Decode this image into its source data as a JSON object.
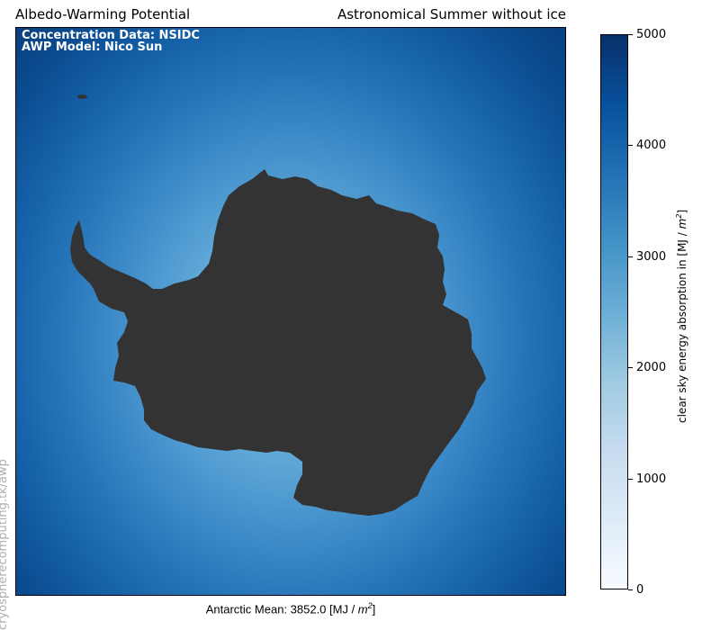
{
  "header": {
    "title_left": "Albedo-Warming Potential",
    "title_right": "Astronomical Summer without ice"
  },
  "map": {
    "info_line_1": "Concentration Data: NSIDC",
    "info_line_2": "AWP Model: Nico Sun",
    "land_color": "#333333",
    "ocean_colors": [
      "#6fb3dd",
      "#2675b9",
      "#08407f"
    ]
  },
  "footer": {
    "mean_label": "Antarctic Mean: 3852.0 [MJ / ",
    "unit_m": "m",
    "unit_exp": "2",
    "unit_close": "]"
  },
  "watermark": {
    "text": "cryospherecomputing.tk/awp"
  },
  "colorbar": {
    "label_prefix": "clear sky energy absorption in [MJ / ",
    "label_m": "m",
    "label_exp": "2",
    "label_close": "]",
    "ticks": [
      "5000",
      "4000",
      "3000",
      "2000",
      "1000",
      "0"
    ],
    "min": 0,
    "max": 5000,
    "colormap": "Blues"
  }
}
